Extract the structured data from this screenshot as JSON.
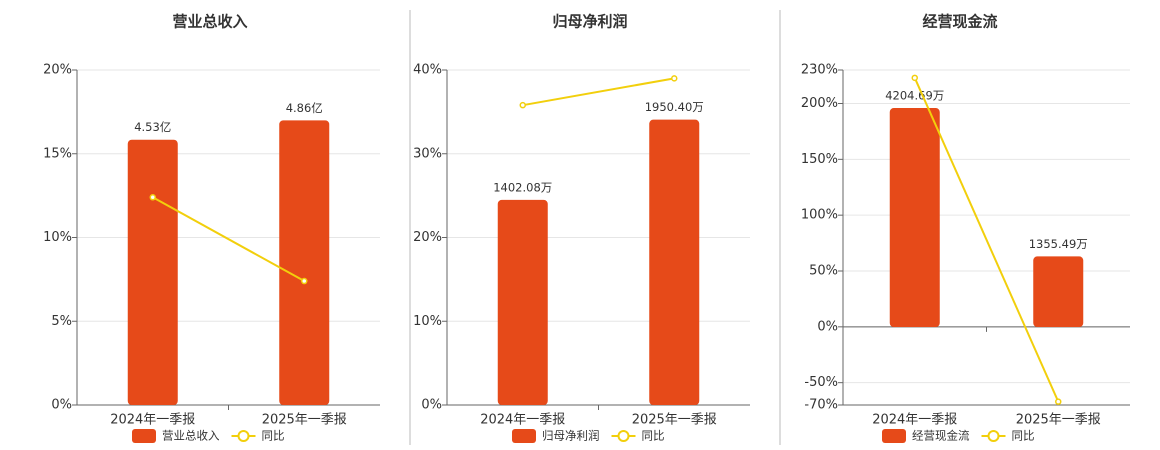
{
  "chart_data": [
    {
      "type": "bar",
      "title": "营业总收入",
      "categories": [
        "2024年一季报",
        "2025年一季报"
      ],
      "series": [
        {
          "name": "营业总收入",
          "color": "#e64a19",
          "values": [
            4.53,
            4.86
          ],
          "value_labels": [
            "4.53亿",
            "4.86亿"
          ],
          "axis": "y2"
        },
        {
          "name": "同比",
          "type": "line",
          "color": "#f2cf0c",
          "values": [
            12.4,
            7.4
          ]
        }
      ],
      "ylim": [
        0,
        20
      ],
      "yticks": [
        {
          "value": 0,
          "label": "0%"
        },
        {
          "value": 5,
          "label": "5%"
        },
        {
          "value": 10,
          "label": "10%"
        },
        {
          "value": 15,
          "label": "15%"
        },
        {
          "value": 20,
          "label": "20%"
        }
      ],
      "y2lim": [
        0,
        5.72
      ],
      "grid": true
    },
    {
      "type": "bar",
      "title": "归母净利润",
      "categories": [
        "2024年一季报",
        "2025年一季报"
      ],
      "series": [
        {
          "name": "归母净利润",
          "color": "#e64a19",
          "values": [
            1402.08,
            1950.4
          ],
          "value_labels": [
            "1402.08万",
            "1950.40万"
          ],
          "axis": "y2"
        },
        {
          "name": "同比",
          "type": "line",
          "color": "#f2cf0c",
          "values": [
            35.8,
            39.0
          ]
        }
      ],
      "ylim": [
        0,
        40
      ],
      "yticks": [
        {
          "value": 0,
          "label": "0%"
        },
        {
          "value": 10,
          "label": "10%"
        },
        {
          "value": 20,
          "label": "20%"
        },
        {
          "value": 30,
          "label": "30%"
        },
        {
          "value": 40,
          "label": "40%"
        }
      ],
      "y2lim": [
        0,
        2290
      ],
      "grid": true
    },
    {
      "type": "bar",
      "title": "经营现金流",
      "categories": [
        "2024年一季报",
        "2025年一季报"
      ],
      "series": [
        {
          "name": "经营现金流",
          "color": "#e64a19",
          "values": [
            4204.69,
            1355.49
          ],
          "value_labels": [
            "4204.69万",
            "1355.49万"
          ],
          "axis": "y2"
        },
        {
          "name": "同比",
          "type": "line",
          "color": "#f2cf0c",
          "values": [
            223,
            -67
          ]
        }
      ],
      "ylim": [
        -70,
        230
      ],
      "yticks": [
        {
          "value": -70,
          "label": "-70%"
        },
        {
          "value": -50,
          "label": "-50%"
        },
        {
          "value": 0,
          "label": "0%"
        },
        {
          "value": 50,
          "label": "50%"
        },
        {
          "value": 100,
          "label": "100%"
        },
        {
          "value": 150,
          "label": "150%"
        },
        {
          "value": 200,
          "label": "200%"
        },
        {
          "value": 230,
          "label": "230%"
        }
      ],
      "y2lim": [
        -1498,
        4935
      ],
      "grid": true
    }
  ]
}
